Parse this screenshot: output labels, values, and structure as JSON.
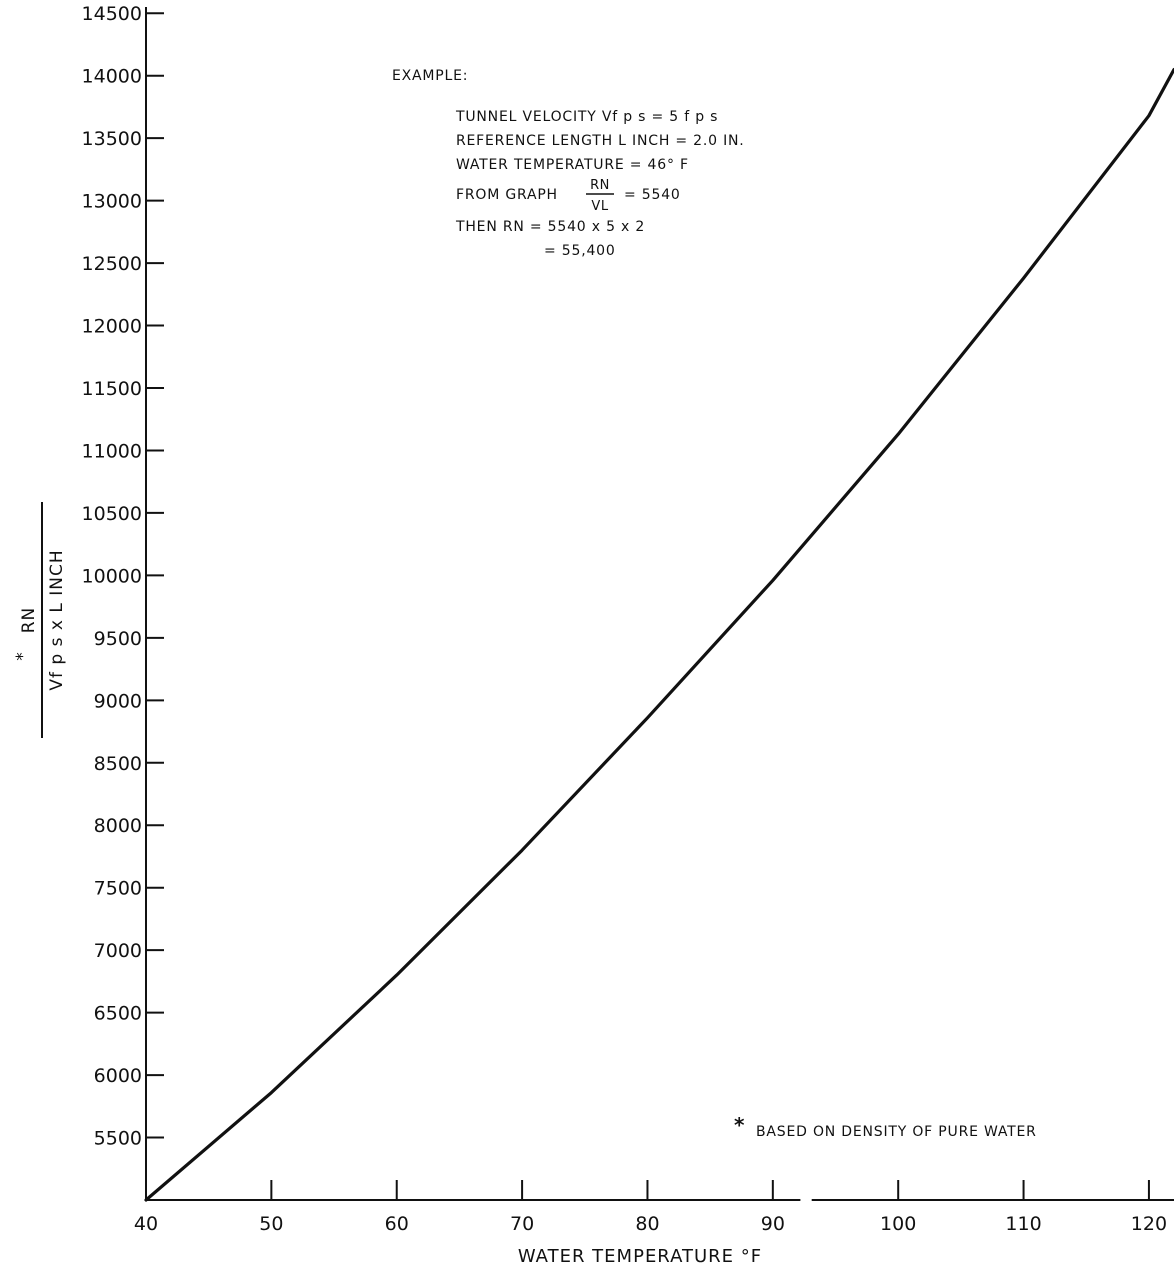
{
  "chart_data": {
    "type": "line",
    "xlabel": "WATER TEMPERATURE °F",
    "ylabel": {
      "marker": "*",
      "numerator": "RN",
      "denominator": "Vf p s x L INCH"
    },
    "xlim": [
      40,
      122
    ],
    "ylim": [
      5000,
      14550
    ],
    "x_ticks": [
      40,
      50,
      60,
      70,
      80,
      90,
      100,
      110,
      120
    ],
    "x_tick_labels": [
      "40",
      "50",
      "60",
      "70",
      "80",
      "90",
      "100",
      "110",
      "120"
    ],
    "y_ticks": [
      5500,
      6000,
      6500,
      7000,
      7500,
      8000,
      8500,
      9000,
      9500,
      10000,
      10500,
      11000,
      11500,
      12000,
      12500,
      13000,
      13500,
      14000,
      14500
    ],
    "y_tick_labels": [
      "5500",
      "6000",
      "6500",
      "7000",
      "7500",
      "8000",
      "8500",
      "9000",
      "9500",
      "10000",
      "10500",
      "11000",
      "11500",
      "12000",
      "12500",
      "13000",
      "13500",
      "14000",
      "14500"
    ],
    "grid": false,
    "series": [
      {
        "x": [
          40,
          50,
          60,
          70,
          80,
          90,
          100,
          110,
          120,
          122
        ],
        "y": [
          5000,
          5860,
          6800,
          7800,
          8860,
          9960,
          11130,
          12380,
          13680,
          14050
        ]
      }
    ],
    "annotations": {
      "example_title": "EXAMPLE:",
      "example_lines": [
        "TUNNEL VELOCITY Vf p s = 5 f p s",
        "REFERENCE LENGTH L INCH = 2.0 IN.",
        "WATER TEMPERATURE = 46° F"
      ],
      "graph_line_prefix": "FROM GRAPH",
      "graph_frac_num": "RN",
      "graph_frac_den": "VL",
      "graph_line_suffix": "= 5540",
      "then_line": "THEN RN = 5540 x 5 x 2",
      "result_line": "= 55,400",
      "footnote_marker": "*",
      "footnote": "BASED ON DENSITY OF PURE WATER"
    }
  }
}
